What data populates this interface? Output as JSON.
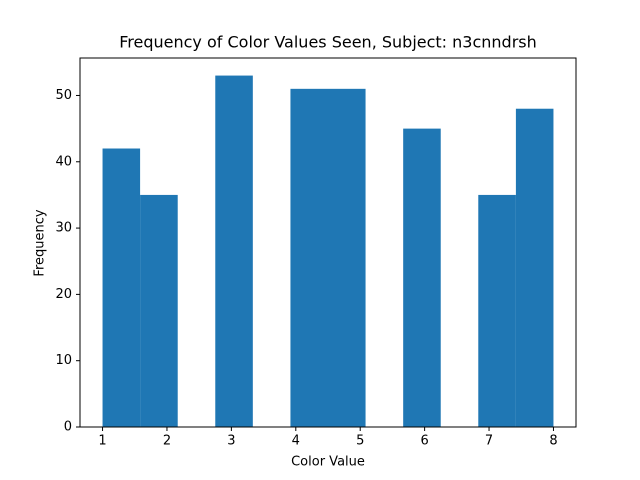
{
  "chart_data": {
    "type": "histogram",
    "title": "Frequency of Color Values Seen, Subject: n3cnndrsh",
    "x_label": "Color Value",
    "y_label": "Frequency",
    "bins": [
      1,
      1.583,
      2.167,
      2.75,
      3.333,
      3.917,
      4.5,
      5.083,
      5.667,
      6.25,
      6.833,
      7.417,
      8
    ],
    "values": [
      42,
      35,
      0,
      53,
      0,
      51,
      51,
      0,
      45,
      0,
      35,
      48
    ],
    "color": "#1f77b4",
    "xlim": [
      0.65,
      8.35
    ],
    "xticks": [
      1,
      2,
      3,
      4,
      5,
      6,
      7,
      8
    ],
    "ylim": [
      0,
      55.65
    ],
    "yticks": [
      0,
      10,
      20,
      30,
      40,
      50
    ],
    "grid": false
  }
}
